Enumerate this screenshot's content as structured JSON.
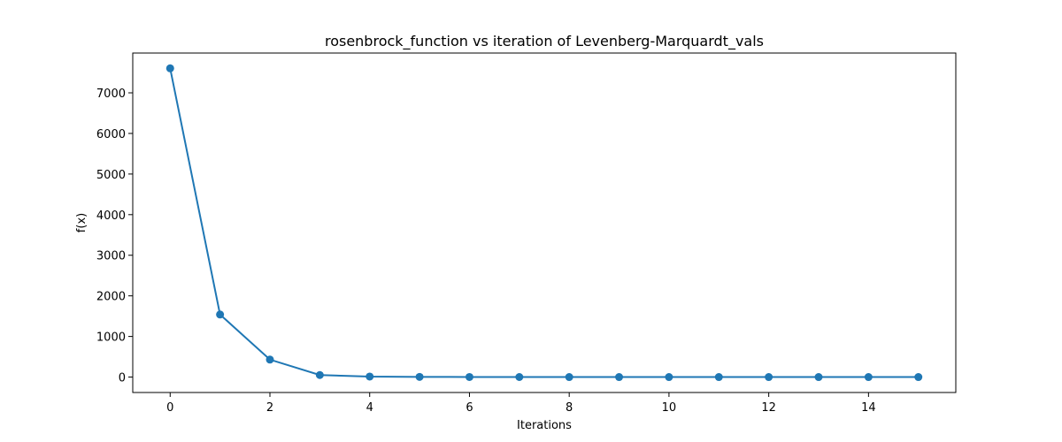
{
  "chart_data": {
    "type": "line",
    "title": "rosenbrock_function vs iteration of Levenberg-Marquardt_vals",
    "xlabel": "Iterations",
    "ylabel": "f(x)",
    "xlim": [
      -0.75,
      15.75
    ],
    "ylim": [
      -380,
      7980
    ],
    "xticks": [
      0,
      2,
      4,
      6,
      8,
      10,
      12,
      14
    ],
    "yticks": [
      0,
      1000,
      2000,
      3000,
      4000,
      5000,
      6000,
      7000
    ],
    "grid": false,
    "series": [
      {
        "color": "#1f77b4",
        "marker": "circle",
        "x": [
          0,
          1,
          2,
          3,
          4,
          5,
          6,
          7,
          8,
          9,
          10,
          11,
          12,
          13,
          14,
          15
        ],
        "y": [
          7604,
          1540,
          430,
          50,
          12,
          4,
          2,
          1,
          0.5,
          0.3,
          0.2,
          0.1,
          0.05,
          0.03,
          0.02,
          0.01
        ]
      }
    ]
  }
}
